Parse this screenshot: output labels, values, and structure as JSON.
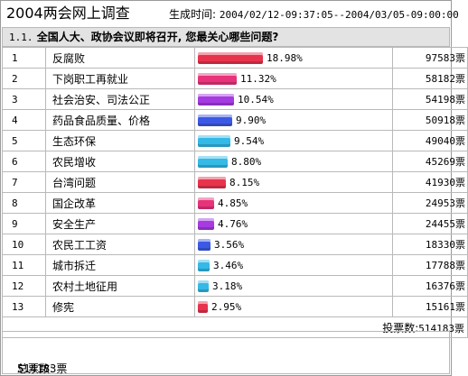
{
  "page": {
    "title": "2004两会网上调查",
    "generated_label": "生成时间:",
    "generated_range": "2004/02/12-09:37:05--2004/03/05-09:00:00"
  },
  "question": {
    "number": "1.1.",
    "text": "全国人大、政协会议即将召开, 您最关心哪些问题?"
  },
  "colors": {
    "red": "#e8334d",
    "purple": "#a53be0",
    "blue": "#3c59e6",
    "cyan": "#35b9e6",
    "pink": "#e8337a"
  },
  "results": [
    {
      "rank": "1",
      "item": "反腐败",
      "percent": "18.98%",
      "fraction": 0.1898,
      "votes": "97583票",
      "color": "#e8334d"
    },
    {
      "rank": "2",
      "item": "下岗职工再就业",
      "percent": "11.32%",
      "fraction": 0.1132,
      "votes": "58182票",
      "color": "#e8337a"
    },
    {
      "rank": "3",
      "item": "社会治安、司法公正",
      "percent": "10.54%",
      "fraction": 0.1054,
      "votes": "54198票",
      "color": "#a53be0"
    },
    {
      "rank": "4",
      "item": "药品食品质量、价格",
      "percent": "9.90%",
      "fraction": 0.099,
      "votes": "50918票",
      "color": "#3c59e6"
    },
    {
      "rank": "5",
      "item": "生态环保",
      "percent": "9.54%",
      "fraction": 0.0954,
      "votes": "49040票",
      "color": "#35b9e6"
    },
    {
      "rank": "6",
      "item": "农民增收",
      "percent": "8.80%",
      "fraction": 0.088,
      "votes": "45269票",
      "color": "#35b9e6"
    },
    {
      "rank": "7",
      "item": "台湾问题",
      "percent": "8.15%",
      "fraction": 0.0815,
      "votes": "41930票",
      "color": "#e8334d"
    },
    {
      "rank": "8",
      "item": "国企改革",
      "percent": "4.85%",
      "fraction": 0.0485,
      "votes": "24953票",
      "color": "#e8337a"
    },
    {
      "rank": "9",
      "item": "安全生产",
      "percent": "4.76%",
      "fraction": 0.0476,
      "votes": "24455票",
      "color": "#a53be0"
    },
    {
      "rank": "10",
      "item": "农民工工资",
      "percent": "3.56%",
      "fraction": 0.0356,
      "votes": "18330票",
      "color": "#3c59e6"
    },
    {
      "rank": "11",
      "item": "城市拆迁",
      "percent": "3.46%",
      "fraction": 0.0346,
      "votes": "17788票",
      "color": "#35b9e6"
    },
    {
      "rank": "12",
      "item": "农村土地征用",
      "percent": "3.18%",
      "fraction": 0.0318,
      "votes": "16376票",
      "color": "#35b9e6"
    },
    {
      "rank": "13",
      "item": "修宪",
      "percent": "2.95%",
      "fraction": 0.0295,
      "votes": "15161票",
      "color": "#e8334d"
    }
  ],
  "question_total": {
    "label": "投票数:",
    "value": "514183票"
  },
  "grand_total": {
    "label": "总票数:",
    "value": "514183票"
  }
}
